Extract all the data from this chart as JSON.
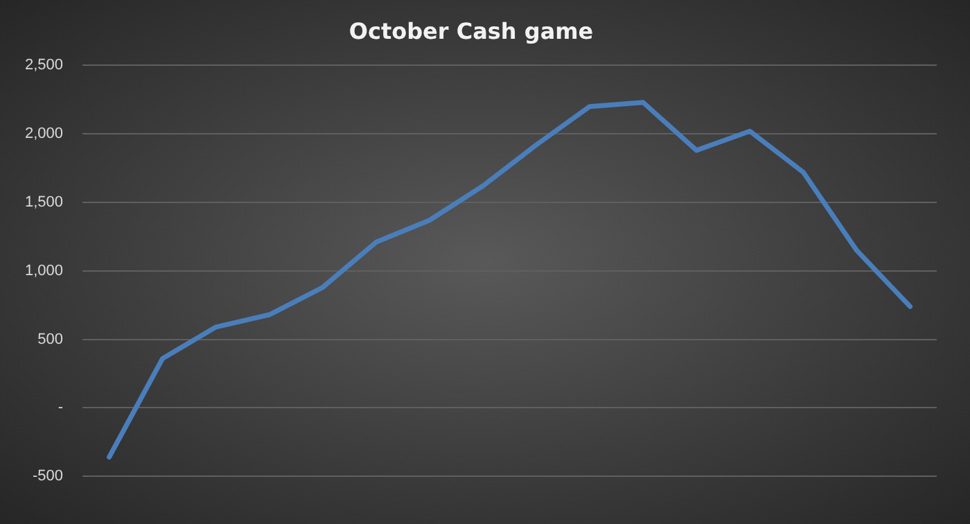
{
  "chart_data": {
    "type": "line",
    "title": "October Cash game",
    "categories": [
      null,
      null,
      null,
      null,
      null,
      null,
      null,
      null,
      null,
      null,
      null,
      null,
      null,
      null,
      null,
      null
    ],
    "series": [
      {
        "color": "#4a7ebb",
        "values": [
          -360,
          360,
          590,
          680,
          880,
          1210,
          1370,
          1620,
          1920,
          2200,
          2230,
          1880,
          2020,
          1720,
          1150,
          740
        ]
      }
    ],
    "ylim": [
      -500,
      2500
    ],
    "yticks": [
      {
        "value": -500,
        "label": "-500"
      },
      {
        "value": 0,
        "label": "-"
      },
      {
        "value": 500,
        "label": "500"
      },
      {
        "value": 1000,
        "label": "1,000"
      },
      {
        "value": 1500,
        "label": "1,500"
      },
      {
        "value": 2000,
        "label": "2,000"
      },
      {
        "value": 2500,
        "label": "2,500"
      }
    ],
    "grid": "y",
    "legend": false,
    "marker": "none",
    "line_style": "solid"
  }
}
